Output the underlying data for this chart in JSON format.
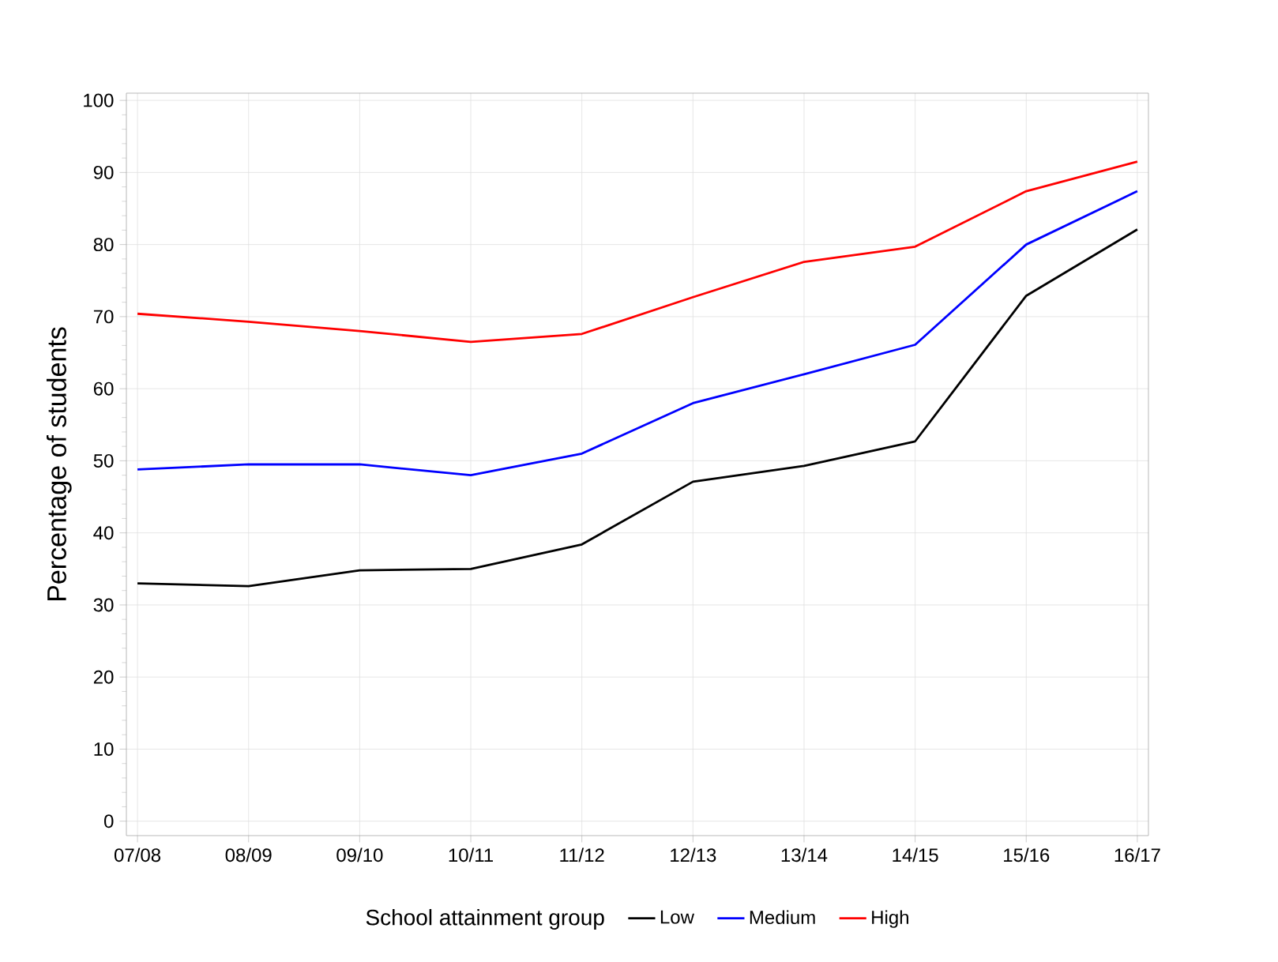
{
  "chart_data": {
    "type": "line",
    "ylabel": "Percentage of students",
    "legend_title": "School attainment group",
    "categories": [
      "07/08",
      "08/09",
      "09/10",
      "10/11",
      "11/12",
      "12/13",
      "13/14",
      "14/15",
      "15/16",
      "16/17"
    ],
    "series": [
      {
        "name": "Low",
        "color": "#000000",
        "values": [
          33.0,
          32.6,
          34.8,
          35.0,
          38.4,
          47.1,
          49.3,
          52.7,
          72.9,
          82.1
        ]
      },
      {
        "name": "Medium",
        "color": "#0000ff",
        "values": [
          48.8,
          49.5,
          49.5,
          48.0,
          51.0,
          58.0,
          62.0,
          66.1,
          80.0,
          87.4
        ]
      },
      {
        "name": "High",
        "color": "#ff0000",
        "values": [
          70.4,
          69.3,
          68.0,
          66.5,
          67.6,
          72.7,
          77.6,
          79.7,
          87.4,
          91.5
        ]
      }
    ],
    "ylim": [
      -2,
      101
    ],
    "yticks": [
      0,
      10,
      20,
      30,
      40,
      50,
      60,
      70,
      80,
      90,
      100
    ],
    "grid": true,
    "legend": "bottom",
    "marker": "none",
    "line_style": "solid"
  }
}
